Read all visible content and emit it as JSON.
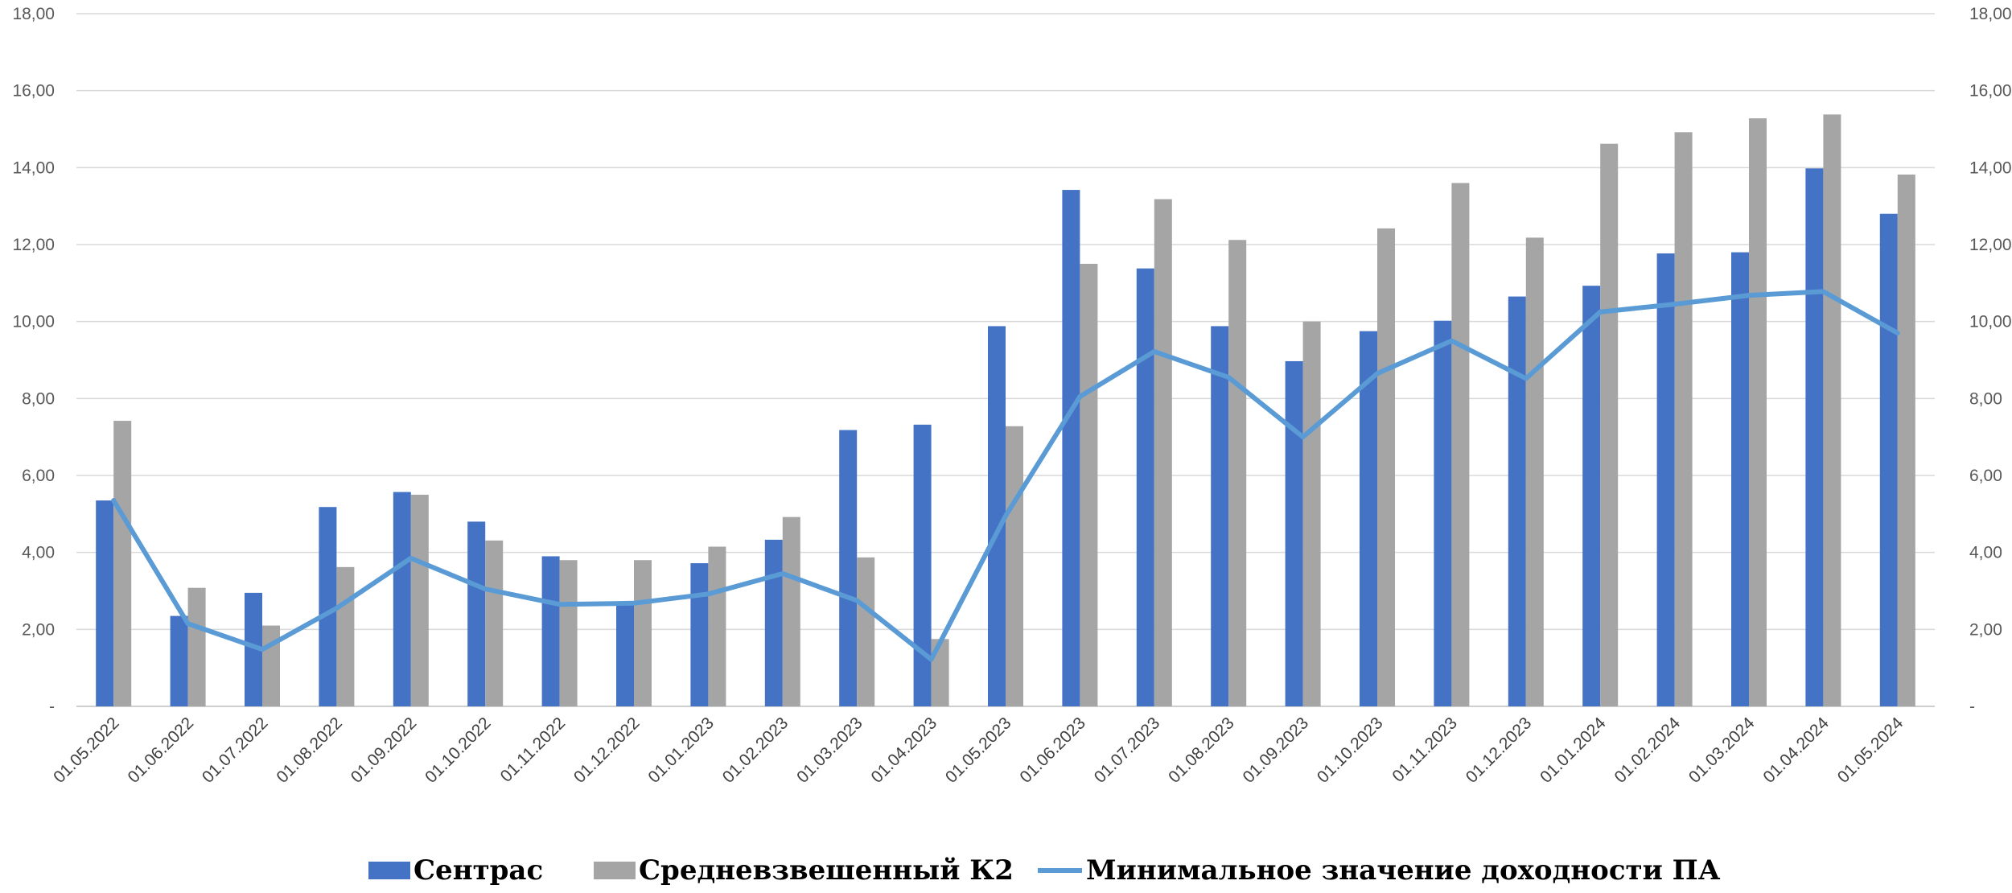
{
  "chart_data": {
    "type": "bar",
    "categories": [
      "01.05.2022",
      "01.06.2022",
      "01.07.2022",
      "01.08.2022",
      "01.09.2022",
      "01.10.2022",
      "01.11.2022",
      "01.12.2022",
      "01.01.2023",
      "01.02.2023",
      "01.03.2023",
      "01.04.2023",
      "01.05.2023",
      "01.06.2023",
      "01.07.2023",
      "01.08.2023",
      "01.09.2023",
      "01.10.2023",
      "01.11.2023",
      "01.12.2023",
      "01.01.2024",
      "01.02.2024",
      "01.03.2024",
      "01.04.2024",
      "01.05.2024"
    ],
    "series": [
      {
        "name": "Сентрас",
        "kind": "bar",
        "color": "#4472c4",
        "values": [
          5.35,
          2.35,
          2.95,
          5.18,
          5.57,
          4.8,
          3.9,
          2.65,
          3.72,
          4.33,
          7.18,
          7.32,
          9.88,
          13.42,
          11.38,
          9.88,
          8.97,
          9.75,
          10.02,
          10.65,
          10.93,
          11.77,
          11.8,
          13.98,
          12.8
        ]
      },
      {
        "name": "Средневзвешенный К2",
        "kind": "bar",
        "color": "#a5a5a5",
        "values": [
          7.42,
          3.08,
          2.1,
          3.62,
          5.5,
          4.31,
          3.8,
          3.8,
          4.15,
          4.92,
          3.87,
          1.75,
          7.28,
          11.5,
          13.18,
          12.12,
          10.0,
          12.42,
          13.6,
          12.18,
          14.62,
          14.92,
          15.28,
          15.38,
          13.82
        ]
      },
      {
        "name": "Минимальное значение доходности ПА",
        "kind": "line",
        "color": "#5b9bd5",
        "values": [
          5.35,
          2.15,
          1.48,
          2.55,
          3.85,
          3.05,
          2.65,
          2.68,
          2.92,
          3.45,
          2.75,
          1.22,
          4.95,
          8.05,
          9.22,
          8.55,
          7.0,
          8.65,
          9.5,
          8.52,
          10.25,
          10.45,
          10.68,
          10.78,
          9.7
        ]
      }
    ],
    "ylim": [
      0,
      18
    ],
    "yticks": [
      "-",
      "2,00",
      "4,00",
      "6,00",
      "8,00",
      "10,00",
      "12,00",
      "14,00",
      "16,00",
      "18,00"
    ],
    "y2ticks": [
      "-",
      "2,00",
      "4,00",
      "6,00",
      "8,00",
      "10,00",
      "12,00",
      "14,00",
      "16,00",
      "18,00"
    ],
    "grid": true,
    "legend": "bottom",
    "title": "",
    "xlabel": "",
    "ylabel": ""
  }
}
